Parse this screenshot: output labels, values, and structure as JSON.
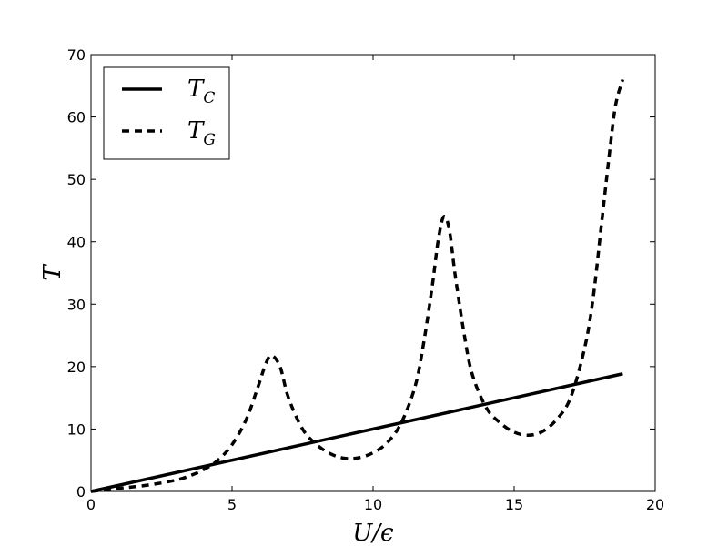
{
  "chart_data": {
    "type": "line",
    "title": "",
    "xlabel": "U/ϵ",
    "ylabel": "T",
    "xlim": [
      0,
      20
    ],
    "ylim": [
      0,
      70
    ],
    "x_ticks": [
      0,
      5,
      10,
      15,
      20
    ],
    "y_ticks": [
      0,
      10,
      20,
      30,
      40,
      50,
      60,
      70
    ],
    "x_tick_labels": [
      "0",
      "5",
      "10",
      "15",
      "20"
    ],
    "y_tick_labels": [
      "0",
      "10",
      "20",
      "30",
      "40",
      "50",
      "60",
      "70"
    ],
    "grid": false,
    "legend_position": "top-left",
    "legend": [
      {
        "symbol": "T",
        "subscript": "C",
        "style": "solid"
      },
      {
        "symbol": "T",
        "subscript": "G",
        "style": "dashed"
      }
    ],
    "series": [
      {
        "style": "solid",
        "color": "#000000",
        "x": [
          0,
          18.85
        ],
        "y": [
          0,
          18.85
        ]
      },
      {
        "style": "dashed",
        "color": "#000000",
        "x": [
          0,
          1,
          2,
          3,
          3.5,
          4,
          4.5,
          5,
          5.5,
          5.9,
          6.2,
          6.4,
          6.7,
          7.0,
          7.5,
          8.0,
          8.5,
          9.0,
          9.5,
          10.0,
          10.5,
          11.0,
          11.5,
          11.8,
          12.1,
          12.3,
          12.5,
          12.7,
          12.9,
          13.2,
          13.5,
          14.0,
          14.5,
          15.0,
          15.5,
          16.0,
          16.5,
          17.0,
          17.5,
          17.8,
          18.1,
          18.4,
          18.6,
          18.85
        ],
        "y": [
          0,
          0.5,
          1.0,
          1.8,
          2.5,
          3.5,
          5.0,
          7.5,
          11.5,
          16.5,
          20.5,
          21.8,
          20.0,
          15.0,
          10.0,
          7.5,
          6.0,
          5.3,
          5.4,
          6.2,
          7.8,
          11.0,
          17.0,
          24.0,
          33.0,
          40.0,
          44.0,
          42.0,
          35.0,
          26.0,
          19.0,
          13.5,
          11.0,
          9.5,
          9.0,
          9.6,
          11.5,
          15.0,
          23.0,
          31.0,
          43.0,
          55.0,
          62.0,
          66.0
        ]
      }
    ]
  }
}
